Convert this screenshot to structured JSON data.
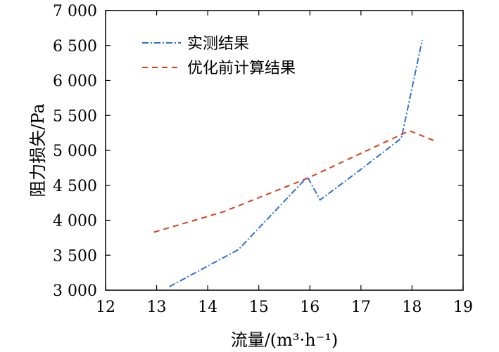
{
  "chart_data": {
    "type": "line",
    "xlabel": "流量/(m³·h⁻¹)",
    "ylabel": "阻力损失/Pa",
    "xlim": [
      12,
      19
    ],
    "ylim": [
      3000,
      7000
    ],
    "xticks": [
      12,
      13,
      14,
      15,
      16,
      17,
      18,
      19
    ],
    "xtick_labels": [
      "12",
      "13",
      "14",
      "15",
      "16",
      "17",
      "18",
      "19"
    ],
    "yticks": [
      3000,
      3500,
      4000,
      4500,
      5000,
      5500,
      6000,
      6500,
      7000
    ],
    "ytick_labels": [
      "3 000",
      "3 500",
      "4 000",
      "4 500",
      "5 000",
      "5 500",
      "6 000",
      "6 500",
      "7 000"
    ],
    "grid": false,
    "legend_position": "top-left",
    "series": [
      {
        "name": "实测结果",
        "color": "#2f6fd6",
        "dash": "dash-dot",
        "x": [
          13.25,
          14.6,
          15.95,
          16.2,
          16.95,
          17.75,
          17.8,
          18.2
        ],
        "y": [
          3050,
          3580,
          4620,
          4290,
          4700,
          5150,
          5200,
          6580
        ]
      },
      {
        "name": "优化前计算结果",
        "color": "#d8401c",
        "dash": "dashed",
        "x": [
          12.95,
          14.3,
          15.95,
          17.95,
          18.5
        ],
        "y": [
          3830,
          4120,
          4600,
          5280,
          5120
        ]
      }
    ]
  }
}
